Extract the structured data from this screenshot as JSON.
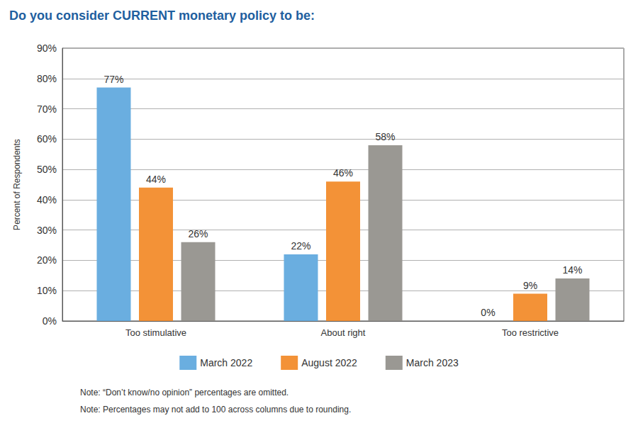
{
  "chart_data": {
    "type": "bar",
    "title": "Do you consider CURRENT monetary policy to be:",
    "y_label": "Percent of Respondents",
    "categories": [
      "Too stimulative",
      "About right",
      "Too restrictive"
    ],
    "series": [
      {
        "name": "March 2022",
        "color": "#6aaee0",
        "values": [
          77,
          22,
          0
        ],
        "value_labels": [
          "77%",
          "22%",
          "0%"
        ]
      },
      {
        "name": "August 2022",
        "color": "#f39237",
        "values": [
          44,
          46,
          9
        ],
        "value_labels": [
          "44%",
          "46%",
          "9%"
        ]
      },
      {
        "name": "March 2023",
        "color": "#9a9893",
        "values": [
          26,
          58,
          14
        ],
        "value_labels": [
          "26%",
          "58%",
          "14%"
        ]
      }
    ],
    "ylim": [
      0,
      90
    ],
    "yticks": [
      {
        "value": 0,
        "label": "0%"
      },
      {
        "value": 10,
        "label": "10%"
      },
      {
        "value": 20,
        "label": "20%"
      },
      {
        "value": 30,
        "label": "30%"
      },
      {
        "value": 40,
        "label": "40%"
      },
      {
        "value": 50,
        "label": "50%"
      },
      {
        "value": 60,
        "label": "60%"
      },
      {
        "value": 70,
        "label": "70%"
      },
      {
        "value": 80,
        "label": "80%"
      },
      {
        "value": 90,
        "label": "90%"
      }
    ],
    "grid": true,
    "legend": "bottom",
    "data_labels": true,
    "annotations": [
      "Note: “Don’t know/no opinion” percentages are omitted.",
      "Note: Percentages may not add to 100 across columns due to rounding."
    ]
  }
}
